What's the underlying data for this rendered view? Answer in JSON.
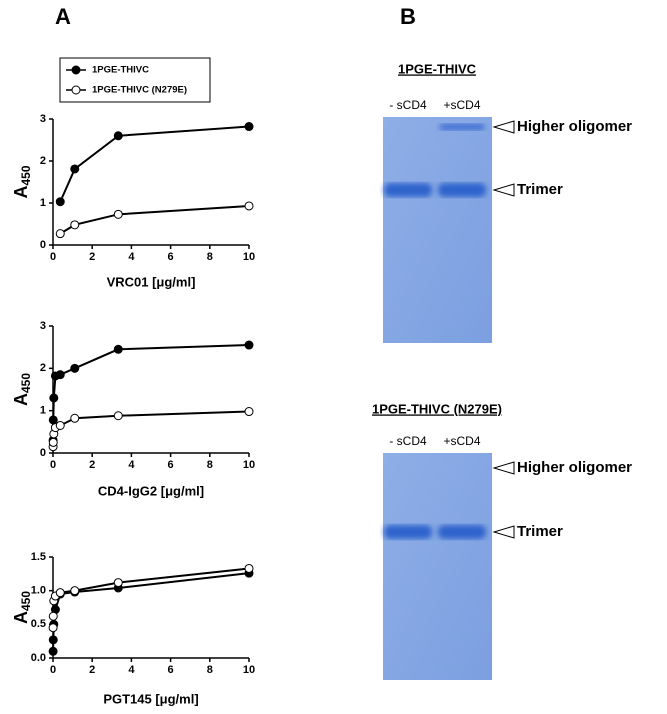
{
  "panels": [
    "A",
    "B"
  ],
  "chart_data": [
    {
      "type": "line",
      "xlabel": "VRC01 [μg/ml]",
      "ylabel": "A",
      "ylabel_subscript": "450",
      "xlim": [
        0,
        10
      ],
      "xticks": [
        0,
        2,
        4,
        6,
        8,
        10
      ],
      "ylim": [
        0,
        3
      ],
      "yticks": [
        0,
        1,
        2,
        3
      ],
      "legend": "top",
      "grid": false,
      "series": [
        {
          "name": "1PGE-THIVC",
          "color": "#000000",
          "x": [
            0.37,
            1.11,
            3.33,
            10
          ],
          "values": [
            1.03,
            1.81,
            2.6,
            2.82
          ]
        },
        {
          "name": "1PGE-THIVC (N279E)",
          "color": "#ffffff",
          "x": [
            0.37,
            1.11,
            3.33,
            10
          ],
          "values": [
            0.27,
            0.48,
            0.73,
            0.93
          ]
        }
      ]
    },
    {
      "type": "line",
      "xlabel": "CD4-IgG2 [μg/ml]",
      "ylabel": "A",
      "ylabel_subscript": "450",
      "xlim": [
        0,
        10
      ],
      "xticks": [
        0,
        2,
        4,
        6,
        8,
        10
      ],
      "ylim": [
        0,
        3
      ],
      "yticks": [
        0,
        1,
        2,
        3
      ],
      "grid": false,
      "series": [
        {
          "color": "#000000",
          "x": [
            0.005,
            0.014,
            0.041,
            0.123,
            0.37,
            1.11,
            3.33,
            10
          ],
          "values": [
            0.3,
            0.78,
            1.3,
            1.82,
            1.85,
            2.0,
            2.45,
            2.55
          ]
        },
        {
          "color": "#ffffff",
          "x": [
            0.005,
            0.014,
            0.041,
            0.123,
            0.37,
            1.11,
            3.33,
            10
          ],
          "values": [
            0.15,
            0.25,
            0.45,
            0.6,
            0.65,
            0.82,
            0.88,
            0.98
          ]
        }
      ]
    },
    {
      "type": "line",
      "xlabel": "PGT145 [μg/ml]",
      "ylabel": "A",
      "ylabel_subscript": "450",
      "xlim": [
        0,
        10
      ],
      "xticks": [
        0,
        2,
        4,
        6,
        8,
        10
      ],
      "ylim": [
        0,
        1.5
      ],
      "yticks": [
        {
          "value": 0,
          "label": "0.0"
        },
        0.5,
        {
          "value": 1,
          "label": "1.0"
        },
        1.5
      ],
      "grid": false,
      "series": [
        {
          "color": "#000000",
          "x": [
            0.005,
            0.014,
            0.041,
            0.123,
            0.37,
            1.11,
            3.33,
            10
          ],
          "values": [
            0.1,
            0.27,
            0.5,
            0.72,
            0.95,
            0.98,
            1.04,
            1.26
          ]
        },
        {
          "color": "#ffffff",
          "x": [
            0.005,
            0.014,
            0.041,
            0.123,
            0.37,
            1.11,
            3.33,
            10
          ],
          "values": [
            0.45,
            0.62,
            0.85,
            0.92,
            0.97,
            1.0,
            1.12,
            1.33
          ]
        }
      ]
    }
  ],
  "gels": [
    {
      "title": "1PGE-THIVC",
      "lanes": [
        "- sCD4",
        "+sCD4"
      ],
      "bands": [
        "Higher oligomer",
        "Trimer"
      ]
    },
    {
      "title": "1PGE-THIVC (N279E)",
      "lanes": [
        "- sCD4",
        "+sCD4"
      ],
      "bands": [
        "Higher oligomer",
        "Trimer"
      ]
    }
  ]
}
